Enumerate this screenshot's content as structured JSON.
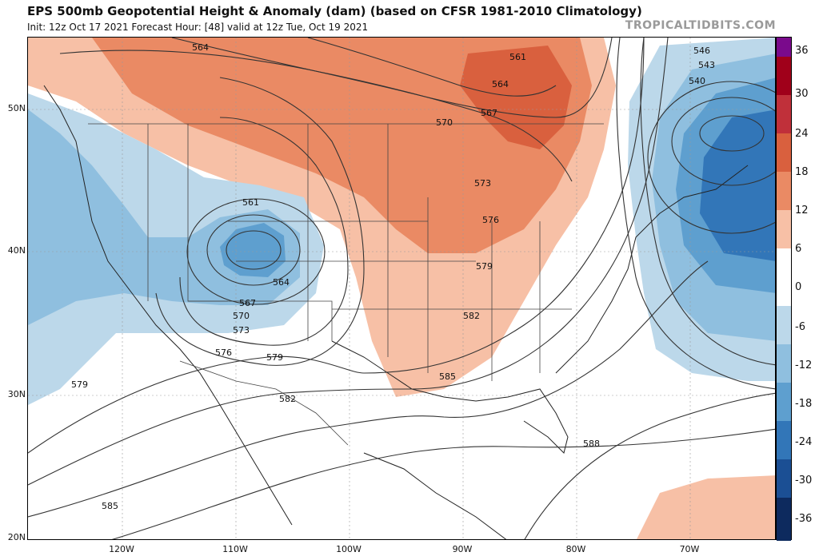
{
  "header": {
    "title": "EPS 500mb Geopotential Height & Anomaly (dam) (based on CFSR 1981-2010 Climatology)",
    "subtitle": "Init: 12z Oct 17 2021   Forecast Hour: [48]   valid at 12z Tue, Oct 19 2021",
    "watermark": "TROPICALTIDBITS.COM"
  },
  "axes": {
    "lat_labels": [
      "50N",
      "40N",
      "30N",
      "20N"
    ],
    "lon_labels": [
      "120W",
      "110W",
      "100W",
      "90W",
      "80W",
      "70W"
    ]
  },
  "contour_labels": {
    "c564a": "564",
    "c561a": "561",
    "c564b": "564",
    "c567a": "567",
    "c570a": "570",
    "c573a": "573",
    "c576a": "576",
    "c579a": "579",
    "c582a": "582",
    "c585a": "585",
    "c588a": "588",
    "c546": "546",
    "c543": "543",
    "c540": "540",
    "c561w": "561",
    "c564w": "564",
    "c567w": "567",
    "c570w": "570",
    "c573w": "573",
    "c576w": "576",
    "c579w": "579",
    "c579sw": "579",
    "c582sw": "582",
    "c585sw": "585"
  },
  "colorbar": {
    "labels": [
      "36",
      "30",
      "24",
      "18",
      "12",
      "6",
      "0",
      "-6",
      "-12",
      "-18",
      "-24",
      "-30",
      "-36"
    ],
    "colors": {
      "pos_36": "#7a0a8c",
      "pos_30": "#a0001a",
      "pos_24": "#c0303a",
      "pos_18": "#d9603e",
      "pos_12": "#ea8a64",
      "pos_6": "#f7c0a6",
      "neutral": "#ffffff",
      "neg_6": "#bcd8ea",
      "neg_12": "#8fbfdf",
      "neg_18": "#5e9fcf",
      "neg_24": "#3276b8",
      "neg_30": "#1b4f94",
      "neg_36": "#0d2a5e"
    }
  }
}
